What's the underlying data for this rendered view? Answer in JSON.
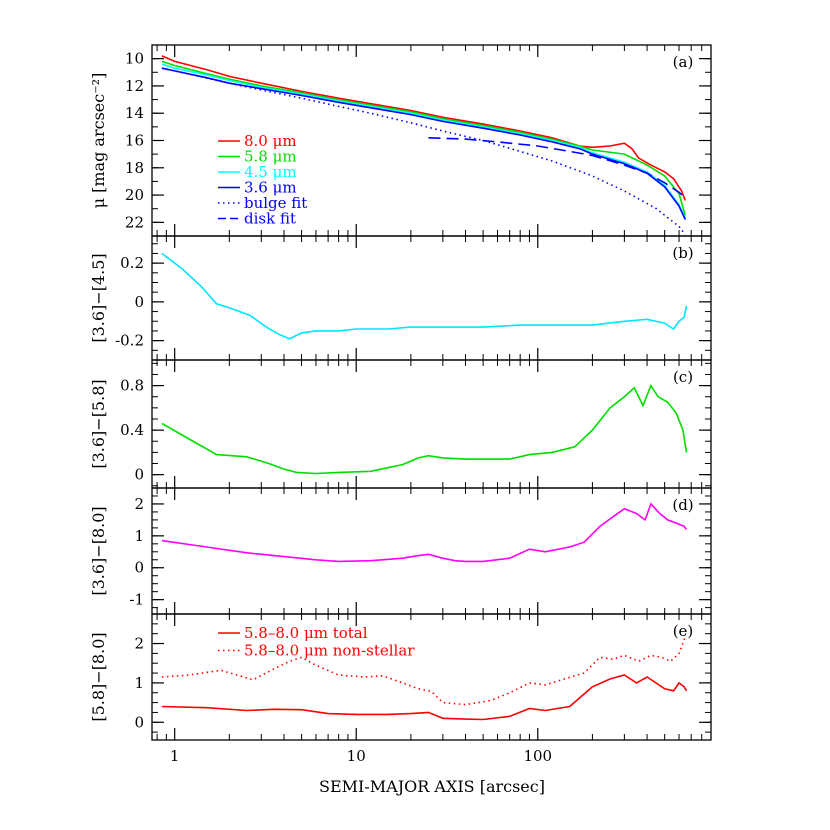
{
  "figure": {
    "xlabel": "SEMI-MAJOR AXIS [arcsec]",
    "xscale": "log",
    "xlim": [
      0.75,
      900
    ],
    "x_tick_labels": [
      "1",
      "10",
      "100"
    ]
  },
  "chart_data": [
    {
      "panel": "a",
      "tag": "(a)",
      "type": "line",
      "ylabel": "μ [mag arcsec⁻²]",
      "yscale": "inverted",
      "ylim": [
        23,
        9
      ],
      "yticks": [
        10,
        12,
        14,
        16,
        18,
        20,
        22
      ],
      "legend_position": "left-middle",
      "series": [
        {
          "name": "8.0 μm",
          "color": "#ff0000",
          "style": "solid",
          "x": [
            0.85,
            1,
            1.5,
            2,
            3,
            5,
            8,
            12,
            20,
            30,
            50,
            80,
            120,
            170,
            200,
            250,
            300,
            330,
            360,
            420,
            500,
            560,
            620,
            650
          ],
          "y": [
            9.8,
            10.2,
            10.8,
            11.3,
            11.8,
            12.4,
            12.9,
            13.3,
            13.8,
            14.3,
            14.8,
            15.3,
            15.8,
            16.4,
            16.5,
            16.4,
            16.2,
            16.6,
            17.3,
            17.8,
            18.3,
            18.8,
            19.7,
            20.4
          ]
        },
        {
          "name": "5.8 μm",
          "color": "#00dd00",
          "style": "solid",
          "x": [
            0.85,
            1,
            1.5,
            2,
            3,
            5,
            8,
            12,
            20,
            30,
            50,
            80,
            120,
            170,
            200,
            300,
            400,
            500,
            600,
            650
          ],
          "y": [
            10.2,
            10.5,
            11.1,
            11.5,
            12.0,
            12.5,
            13.0,
            13.4,
            13.9,
            14.4,
            14.9,
            15.4,
            15.9,
            16.4,
            16.7,
            17.0,
            17.8,
            18.6,
            19.9,
            21.5
          ]
        },
        {
          "name": "4.5 μm",
          "color": "#00ffff",
          "style": "solid",
          "x": [
            0.85,
            1,
            1.5,
            2,
            3,
            5,
            8,
            12,
            20,
            30,
            50,
            80,
            120,
            170,
            200,
            300,
            400,
            500,
            600,
            650
          ],
          "y": [
            10.4,
            10.7,
            11.2,
            11.6,
            12.1,
            12.6,
            13.1,
            13.5,
            14.0,
            14.5,
            15.0,
            15.5,
            16.0,
            16.5,
            16.9,
            17.6,
            18.3,
            19.3,
            20.7,
            21.7
          ]
        },
        {
          "name": "3.6 μm",
          "color": "#0000ff",
          "style": "solid",
          "x": [
            0.85,
            1,
            1.5,
            2,
            3,
            5,
            8,
            12,
            20,
            30,
            50,
            80,
            120,
            170,
            200,
            300,
            400,
            500,
            600,
            650
          ],
          "y": [
            10.7,
            10.9,
            11.4,
            11.8,
            12.2,
            12.7,
            13.2,
            13.6,
            14.1,
            14.6,
            15.1,
            15.6,
            16.1,
            16.6,
            17.0,
            17.7,
            18.4,
            19.4,
            20.8,
            21.8
          ]
        },
        {
          "name": "bulge fit",
          "color": "#0000ff",
          "style": "dotted",
          "x": [
            0.85,
            1,
            2,
            3,
            5,
            8,
            12,
            20,
            30,
            50,
            80,
            120,
            200,
            300,
            450,
            600,
            650
          ],
          "y": [
            10.7,
            10.9,
            11.8,
            12.3,
            12.9,
            13.5,
            14.0,
            14.7,
            15.3,
            16.0,
            16.8,
            17.5,
            18.6,
            19.7,
            21.0,
            22.3,
            22.9
          ]
        },
        {
          "name": "disk fit",
          "color": "#0000ff",
          "style": "dashed",
          "x": [
            25,
            40,
            60,
            100,
            150,
            200,
            300,
            400,
            500,
            600,
            650
          ],
          "y": [
            15.8,
            15.9,
            16.1,
            16.4,
            16.8,
            17.1,
            17.8,
            18.4,
            19.1,
            19.8,
            20.2
          ]
        }
      ]
    },
    {
      "panel": "b",
      "tag": "(b)",
      "type": "line",
      "ylabel": "[3.6]−[4.5]",
      "ylim": [
        -0.3,
        0.34
      ],
      "yticks": [
        -0.2,
        0,
        0.2
      ],
      "series": [
        {
          "color": "#00e5ff",
          "style": "solid",
          "x": [
            0.85,
            1.1,
            1.4,
            1.7,
            2.0,
            2.6,
            3.2,
            3.8,
            4.3,
            5.0,
            6,
            8,
            10,
            15,
            20,
            30,
            50,
            80,
            120,
            200,
            300,
            400,
            500,
            560,
            600,
            640,
            660
          ],
          "y": [
            0.25,
            0.17,
            0.08,
            -0.01,
            -0.03,
            -0.07,
            -0.13,
            -0.17,
            -0.19,
            -0.16,
            -0.15,
            -0.15,
            -0.14,
            -0.14,
            -0.13,
            -0.13,
            -0.13,
            -0.12,
            -0.12,
            -0.12,
            -0.1,
            -0.09,
            -0.11,
            -0.14,
            -0.1,
            -0.08,
            -0.02
          ]
        }
      ]
    },
    {
      "panel": "c",
      "tag": "(c)",
      "type": "line",
      "ylabel": "[3.6]−[5.8]",
      "ylim": [
        -0.12,
        1.03
      ],
      "yticks": [
        0,
        0.4,
        0.8
      ],
      "series": [
        {
          "color": "#00dd00",
          "style": "solid",
          "x": [
            0.85,
            1.2,
            1.7,
            2.5,
            3.3,
            4.0,
            4.7,
            6,
            8,
            12,
            18,
            22,
            25,
            30,
            40,
            50,
            70,
            90,
            120,
            160,
            200,
            250,
            300,
            340,
            380,
            420,
            460,
            520,
            580,
            630,
            660
          ],
          "y": [
            0.46,
            0.32,
            0.18,
            0.16,
            0.1,
            0.05,
            0.02,
            0.01,
            0.02,
            0.03,
            0.09,
            0.15,
            0.17,
            0.15,
            0.14,
            0.14,
            0.14,
            0.18,
            0.2,
            0.25,
            0.4,
            0.6,
            0.7,
            0.78,
            0.62,
            0.8,
            0.7,
            0.65,
            0.55,
            0.4,
            0.2
          ]
        }
      ]
    },
    {
      "panel": "d",
      "tag": "(d)",
      "type": "line",
      "ylabel": "[3.6]−[8.0]",
      "ylim": [
        -1.45,
        2.5
      ],
      "yticks": [
        -1,
        0,
        1,
        2
      ],
      "series": [
        {
          "color": "#ff00ff",
          "style": "solid",
          "x": [
            0.85,
            1.5,
            2.5,
            4,
            6,
            8,
            12,
            18,
            22,
            25,
            30,
            35,
            40,
            50,
            70,
            90,
            110,
            150,
            180,
            220,
            260,
            300,
            350,
            390,
            420,
            470,
            520,
            580,
            640,
            660
          ],
          "y": [
            0.85,
            0.65,
            0.47,
            0.35,
            0.25,
            0.2,
            0.22,
            0.3,
            0.38,
            0.42,
            0.3,
            0.22,
            0.2,
            0.2,
            0.3,
            0.58,
            0.5,
            0.65,
            0.8,
            1.3,
            1.6,
            1.85,
            1.7,
            1.5,
            2.0,
            1.7,
            1.5,
            1.4,
            1.3,
            1.2
          ]
        }
      ]
    },
    {
      "panel": "e",
      "tag": "(e)",
      "type": "line",
      "ylabel": "[5.8]−[8.0]",
      "ylim": [
        -0.45,
        2.75
      ],
      "yticks": [
        0,
        1,
        2
      ],
      "legend_position": "top-left",
      "series": [
        {
          "name": "5.8–8.0 μm total",
          "color": "#ff0000",
          "style": "solid",
          "x": [
            0.85,
            1.5,
            2.5,
            3.5,
            5,
            7,
            10,
            15,
            20,
            25,
            30,
            40,
            50,
            70,
            90,
            110,
            150,
            200,
            250,
            300,
            350,
            400,
            500,
            560,
            600,
            640,
            660
          ],
          "y": [
            0.4,
            0.37,
            0.3,
            0.33,
            0.32,
            0.22,
            0.2,
            0.2,
            0.22,
            0.25,
            0.1,
            0.08,
            0.07,
            0.15,
            0.35,
            0.3,
            0.4,
            0.9,
            1.1,
            1.2,
            1.0,
            1.15,
            0.85,
            0.8,
            1.0,
            0.9,
            0.8
          ]
        },
        {
          "name": "5.8–8.0 μm non-stellar",
          "color": "#ff0000",
          "style": "dotted",
          "x": [
            0.85,
            1.2,
            1.8,
            2.7,
            3.5,
            4.3,
            5,
            6,
            8,
            11,
            14,
            18,
            22,
            26,
            30,
            40,
            55,
            70,
            90,
            110,
            140,
            180,
            220,
            260,
            300,
            360,
            420,
            480,
            540,
            600,
            640,
            660
          ],
          "y": [
            1.15,
            1.2,
            1.32,
            1.08,
            1.35,
            1.55,
            1.65,
            1.45,
            1.2,
            1.15,
            1.18,
            1.0,
            0.85,
            0.78,
            0.5,
            0.45,
            0.55,
            0.75,
            1.0,
            0.95,
            1.1,
            1.25,
            1.65,
            1.6,
            1.7,
            1.55,
            1.7,
            1.65,
            1.55,
            1.75,
            2.1,
            2.2
          ]
        }
      ]
    }
  ]
}
